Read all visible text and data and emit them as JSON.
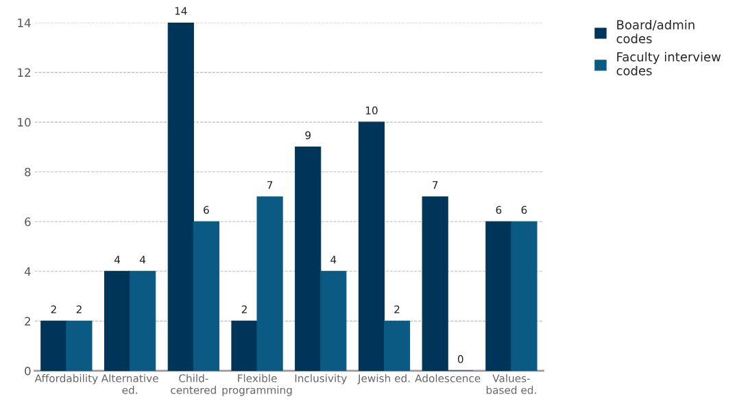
{
  "chart_data": {
    "type": "bar",
    "categories": [
      "Affordability",
      "Alternative\ned.",
      "Child-\ncentered",
      "Flexible\nprogramming",
      "Inclusivity",
      "Jewish ed.",
      "Adolescence",
      "Values-\nbased ed."
    ],
    "series": [
      {
        "name": "Board/admin\ncodes",
        "color": "#00355a",
        "values": [
          2,
          4,
          14,
          2,
          9,
          10,
          7,
          6
        ]
      },
      {
        "name": "Faculty interview\ncodes",
        "color": "#0b5a84",
        "values": [
          2,
          4,
          6,
          7,
          4,
          2,
          0,
          6
        ]
      }
    ],
    "ylim": [
      0,
      14
    ],
    "yticks": [
      0,
      2,
      4,
      6,
      8,
      10,
      12,
      14
    ],
    "grid": "y",
    "legend": "top right",
    "data_labels": true
  }
}
